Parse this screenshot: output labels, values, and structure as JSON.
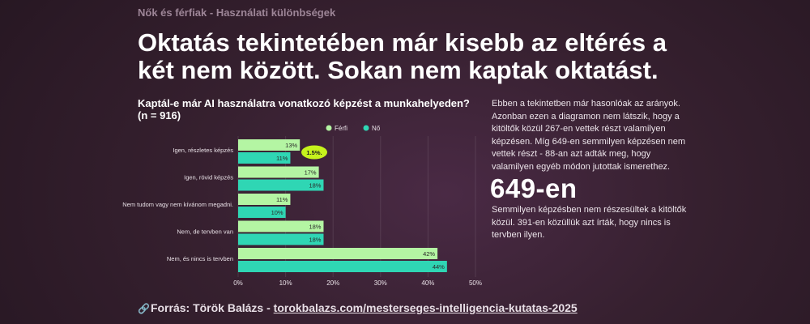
{
  "kicker": "Nők és férfiak - Használati különbségek",
  "headline": "Oktatás tekintetében már kisebb az eltérés a két nem között. Sokan nem kaptak oktatást.",
  "colors": {
    "ferfi": "#b4f5a3",
    "no": "#2fd6b4",
    "callout_bg": "#c6f31c"
  },
  "chart_data": {
    "type": "bar",
    "orientation": "horizontal",
    "title": "Kaptál-e már AI használatra vonatkozó képzést a munkahelyeden? (n = 916)",
    "categories": [
      "Igen, részletes képzés",
      "Igen, rövid képzés",
      "Nem tudom vagy nem kívánom megadni.",
      "Nem, de tervben van",
      "Nem, és nincs is tervben"
    ],
    "series": [
      {
        "name": "Férfi",
        "values": [
          13,
          17,
          11,
          18,
          42
        ],
        "labels": [
          "13%",
          "17%",
          "11%",
          "18%",
          "42%"
        ]
      },
      {
        "name": "Nő",
        "values": [
          11,
          18,
          10,
          18,
          44
        ],
        "labels": [
          "11%",
          "18%",
          "10%",
          "18%",
          "44%"
        ]
      }
    ],
    "xlim": [
      0,
      50
    ],
    "xticks": [
      "0%",
      "10%",
      "20%",
      "30%",
      "40%",
      "50%"
    ],
    "annotation": {
      "text": "1.5%.",
      "category": "Igen, részletes képzés"
    },
    "legend_position": "top-right",
    "grid": true
  },
  "side": {
    "paragraph": "Ebben a tekintetben már hasonlóak az arányok. Azonban ezen a diagramon nem látszik, hogy a kitöltők közül 267-en vettek részt valamilyen képzésen. Míg 649-en semmilyen képzésen nem vettek részt - 88-an azt adták meg, hogy valamilyen egyéb módon jutottak ismerethez.",
    "big_number": "649-en",
    "big_caption": "Semmilyen képzésben nem részesültek a kitöltők közül. 391-en közüllük azt írták, hogy nincs is tervben ilyen."
  },
  "source": {
    "icon": "link-icon",
    "prefix": "Forrás: Török Balázs - ",
    "link_text": "torokbalazs.com/mesterseges-intelligencia-kutatas-2025"
  }
}
